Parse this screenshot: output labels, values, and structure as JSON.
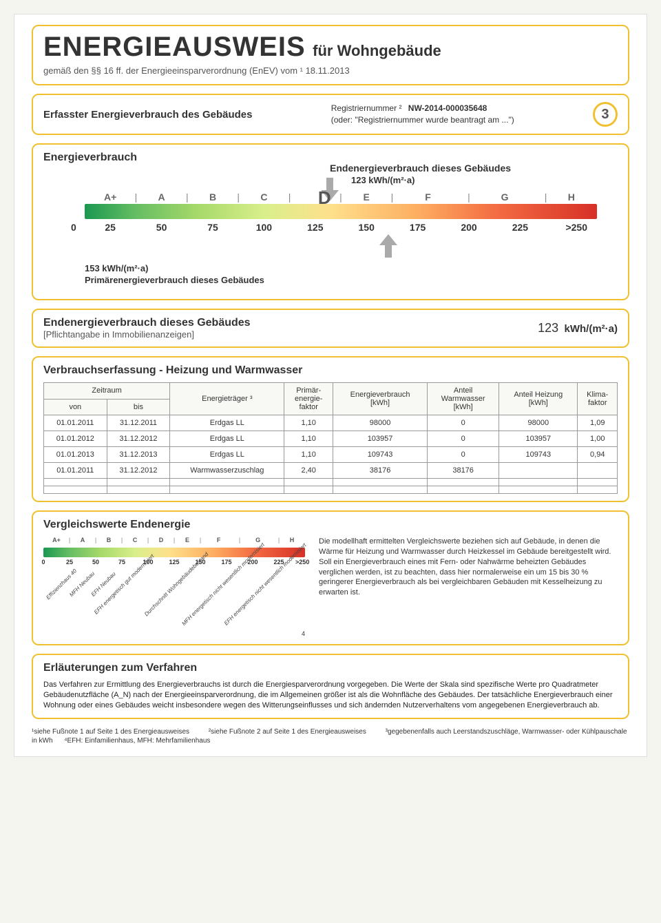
{
  "header": {
    "main": "ENERGIEAUSWEIS",
    "sub": "für Wohngebäude",
    "line2": "gemäß den §§ 16 ff. der Energieeinsparverordnung (EnEV) vom ¹  18.11.2013"
  },
  "reg": {
    "left": "Erfasster Energieverbrauch des Gebäudes",
    "label": "Registriernummer ²",
    "value": "NW-2014-000035648",
    "note": "(oder: \"Registriernummer wurde beantragt am ...\")",
    "page": "3"
  },
  "energybar": {
    "title": "Energieverbrauch",
    "end_label": "Endenergieverbrauch dieses Gebäudes",
    "end_value": "123 kWh/(m²·a)",
    "prim_value": "153 kWh/(m²·a)",
    "prim_label": "Primärenergieverbrauch dieses Gebäudes",
    "grades": [
      "A+",
      "A",
      "B",
      "C",
      "D",
      "E",
      "F",
      "G",
      "H"
    ],
    "grade_letter": "D",
    "ticks": [
      "25",
      "50",
      "75",
      "100",
      "125",
      "150",
      "175",
      "200",
      "225",
      ">250"
    ],
    "zero": "0",
    "end_pointer_pct": 46,
    "prim_pointer_pct": 57,
    "colors": {
      "gradient": [
        "#1a9850",
        "#66bd63",
        "#a6d96a",
        "#d9ef8b",
        "#fee08b",
        "#fdae61",
        "#f46d43",
        "#d73027"
      ],
      "border": "#f0c030",
      "arrow": "#aaaaaa"
    }
  },
  "endbox": {
    "title": "Endenergieverbrauch dieses Gebäudes",
    "sub": "[Pflichtangabe in Immobilienanzeigen]",
    "value": "123",
    "unit": "kWh/(m²·a)"
  },
  "consumption": {
    "title": "Verbrauchserfassung - Heizung und Warmwasser",
    "head": {
      "period": "Zeitraum",
      "from": "von",
      "to": "bis",
      "carrier": "Energieträger ³",
      "pef": "Primär-\nenergie-\nfaktor",
      "cons": "Energieverbrauch\n[kWh]",
      "ww": "Anteil\nWarmwasser\n[kWh]",
      "heat": "Anteil Heizung\n[kWh]",
      "cf": "Klima-\nfaktor"
    },
    "rows": [
      {
        "from": "01.01.2011",
        "to": "31.12.2011",
        "carrier": "Erdgas LL",
        "pef": "1,10",
        "cons": "98000",
        "ww": "0",
        "heat": "98000",
        "cf": "1,09"
      },
      {
        "from": "01.01.2012",
        "to": "31.12.2012",
        "carrier": "Erdgas LL",
        "pef": "1,10",
        "cons": "103957",
        "ww": "0",
        "heat": "103957",
        "cf": "1,00"
      },
      {
        "from": "01.01.2013",
        "to": "31.12.2013",
        "carrier": "Erdgas LL",
        "pef": "1,10",
        "cons": "109743",
        "ww": "0",
        "heat": "109743",
        "cf": "0,94"
      },
      {
        "from": "01.01.2011",
        "to": "31.12.2012",
        "carrier": "Warmwasserzuschlag",
        "pef": "2,40",
        "cons": "38176",
        "ww": "38176",
        "heat": "",
        "cf": ""
      },
      {
        "from": "",
        "to": "",
        "carrier": "",
        "pef": "",
        "cons": "",
        "ww": "",
        "heat": "",
        "cf": ""
      },
      {
        "from": "",
        "to": "",
        "carrier": "",
        "pef": "",
        "cons": "",
        "ww": "",
        "heat": "",
        "cf": ""
      }
    ]
  },
  "compare": {
    "title": "Vergleichswerte Endenergie",
    "grades": [
      "A+",
      "A",
      "B",
      "C",
      "D",
      "E",
      "F",
      "G",
      "H"
    ],
    "ticks": [
      "0",
      "25",
      "50",
      "75",
      "100",
      "125",
      "150",
      "175",
      "200",
      "225",
      ">250"
    ],
    "diag_labels": [
      "Effizienzhaus 40",
      "MFH Neubau",
      "EFH Neubau",
      "EFH energetisch\ngut modernisiert",
      "Durchschnitt\nWohngebäudebestand",
      "MFH energetisch nicht\nwesentlich modernisiert",
      "EFH energetisch nicht\nwesentlich modernisiert"
    ],
    "diag_pcts": [
      6,
      14,
      22,
      30,
      50,
      68,
      84
    ],
    "text": "Die modellhaft ermittelten Vergleichswerte beziehen sich auf Gebäude, in denen die Wärme für Heizung und Warmwasser durch Heizkessel im Gebäude bereitgestellt wird.\nSoll ein Energieverbrauch eines mit Fern- oder Nahwärme beheizten Gebäudes verglichen werden, ist zu beachten, dass hier normalerweise ein um 15 bis 30 % geringerer Energieverbrauch als bei vergleichbaren Gebäuden mit Kesselheizung zu erwarten ist.",
    "foot4": "4"
  },
  "explain": {
    "title": "Erläuterungen zum Verfahren",
    "text": "Das Verfahren zur Ermittlung des Energieverbrauchs ist durch die Energiesparverordnung vorgegeben. Die Werte der Skala sind spezifische Werte pro Quadratmeter Gebäudenutzfläche (A_N) nach der Energieeinsparverordnung, die im Allgemeinen größer ist als die Wohnfläche des Gebäudes. Der tatsächliche Energieverbrauch einer Wohnung oder eines Gebäudes weicht insbesondere wegen des Witterungseinflusses und sich ändernden Nutzerverhaltens vom angegebenen Energieverbrauch ab."
  },
  "footnotes": {
    "l1": "¹siehe Fußnote 1 auf Seite 1 des Energieausweises",
    "l2": "²siehe Fußnote 2 auf Seite 1 des Energieausweises",
    "l3": "³gegebenenfalls auch Leerstandszuschläge, Warmwasser- oder Kühlpauschale in kWh",
    "l4": "⁴EFH: Einfamilienhaus, MFH: Mehrfamilienhaus"
  }
}
